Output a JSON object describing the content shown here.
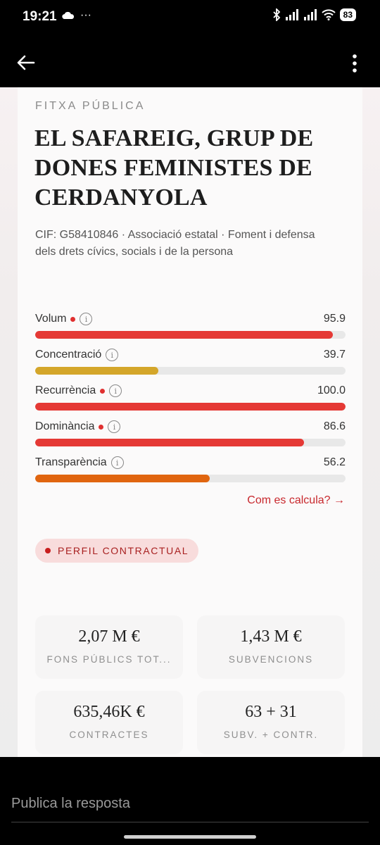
{
  "status_bar": {
    "time": "19:21",
    "overflow_dots": "···",
    "battery": "83"
  },
  "profile": {
    "eyebrow": "FITXA PÚBLICA",
    "title": "EL SAFAREIG, GRUP DE DONES FEMINISTES DE CERDANYOLA",
    "meta": "CIF: G58410846 · Associació estatal · Foment i defensa dels drets cívics, socials i de la persona"
  },
  "metrics": [
    {
      "label": "Volum",
      "value": "95.9",
      "flagged": true,
      "color": "#e53935",
      "fraction": 0.959
    },
    {
      "label": "Concentració",
      "value": "39.7",
      "flagged": false,
      "color": "#d4a62a",
      "fraction": 0.397
    },
    {
      "label": "Recurrència",
      "value": "100.0",
      "flagged": true,
      "color": "#e53935",
      "fraction": 1.0
    },
    {
      "label": "Dominància",
      "value": "86.6",
      "flagged": true,
      "color": "#e53935",
      "fraction": 0.866
    },
    {
      "label": "Transparència",
      "value": "56.2",
      "flagged": false,
      "color": "#e0650f",
      "fraction": 0.562
    }
  ],
  "calc_link": "Com es calcula? →",
  "badge": "PERFIL CONTRACTUAL",
  "stats": [
    {
      "value": "2,07 M €",
      "label": "FONS PÚBLICS TOT..."
    },
    {
      "value": "1,43 M €",
      "label": "SUBVENCIONS"
    },
    {
      "value": "635,46K €",
      "label": "CONTRACTES"
    },
    {
      "value": "63 + 31",
      "label": "SUBV. + CONTR."
    }
  ],
  "reply": {
    "placeholder": "Publica la resposta"
  },
  "colors": {
    "accent_red": "#e53935",
    "badge_bg": "#f8dcdc"
  }
}
